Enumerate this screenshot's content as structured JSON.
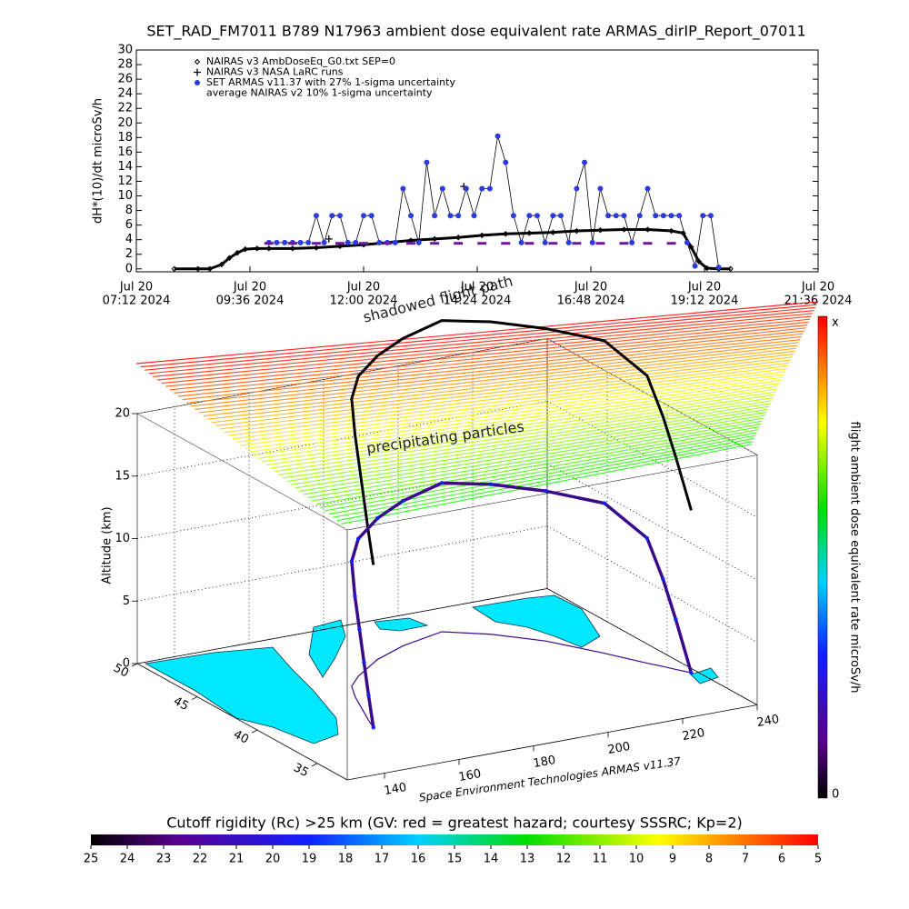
{
  "chart_data": [
    {
      "type": "line",
      "title": "SET_RAD_FM7011  B789 N17963 ambient dose equivalent rate ARMAS_dirIP_Report_07011",
      "y_label": "dH*(10)/dt microSv/h",
      "xlim": [
        "2024-07-20 07:12",
        "2024-07-20 21:36"
      ],
      "xticks": [
        {
          "value": "2024-07-20 07:12",
          "label": [
            "Jul 20",
            "07:12 2024"
          ]
        },
        {
          "value": "2024-07-20 09:36",
          "label": [
            "Jul 20",
            "09:36 2024"
          ]
        },
        {
          "value": "2024-07-20 12:00",
          "label": [
            "Jul 20",
            "12:00 2024"
          ]
        },
        {
          "value": "2024-07-20 14:24",
          "label": [
            "Jul 20",
            "14:24 2024"
          ]
        },
        {
          "value": "2024-07-20 16:48",
          "label": [
            "Jul 20",
            "16:48 2024"
          ]
        },
        {
          "value": "2024-07-20 19:12",
          "label": [
            "Jul 20",
            "19:12 2024"
          ]
        },
        {
          "value": "2024-07-20 21:36",
          "label": [
            "Jul 20",
            "21:36 2024"
          ]
        }
      ],
      "ylim": [
        -0.4,
        30
      ],
      "yticks": [
        0,
        2,
        4,
        6,
        8,
        10,
        12,
        14,
        16,
        18,
        20,
        22,
        24,
        26,
        28,
        30
      ],
      "series": [
        {
          "name": "NAIRAS v3 AmbDoseEq_G0.txt SEP=0",
          "color": "#000000",
          "marker": "diamond",
          "line": true,
          "line_color": "#000000",
          "x": [
            "2024-07-20 08:00",
            "2024-07-20 08:30",
            "2024-07-20 08:45",
            "2024-07-20 09:00",
            "2024-07-20 09:10",
            "2024-07-20 09:20",
            "2024-07-20 09:30",
            "2024-07-20 09:45",
            "2024-07-20 10:00",
            "2024-07-20 10:30",
            "2024-07-20 11:00",
            "2024-07-20 11:30",
            "2024-07-20 12:00",
            "2024-07-20 12:30",
            "2024-07-20 13:00",
            "2024-07-20 13:30",
            "2024-07-20 14:00",
            "2024-07-20 14:30",
            "2024-07-20 15:00",
            "2024-07-20 15:30",
            "2024-07-20 16:00",
            "2024-07-20 16:30",
            "2024-07-20 17:00",
            "2024-07-20 17:30",
            "2024-07-20 18:00",
            "2024-07-20 18:30",
            "2024-07-20 18:45",
            "2024-07-20 18:55",
            "2024-07-20 19:05",
            "2024-07-20 19:15",
            "2024-07-20 19:30",
            "2024-07-20 19:45"
          ],
          "values": [
            0,
            0,
            0,
            0.6,
            1.5,
            2.2,
            2.7,
            2.8,
            2.8,
            2.8,
            2.9,
            3.1,
            3.3,
            3.6,
            3.9,
            4.1,
            4.3,
            4.6,
            4.8,
            4.9,
            5.0,
            5.2,
            5.3,
            5.4,
            5.4,
            5.2,
            4.9,
            3.0,
            1.0,
            0.1,
            0,
            0
          ]
        },
        {
          "name": "NAIRAS v3 NASA LaRC runs",
          "color": "#000000",
          "marker": "plus",
          "line": false,
          "x": [
            "2024-07-20 11:16",
            "2024-07-20 14:07"
          ],
          "values": [
            4.1,
            11.3
          ]
        },
        {
          "name": "SET ARMAS v11.37 with 27% 1-sigma uncertainty",
          "color": "#2b3bdc",
          "marker": "dot",
          "line": true,
          "line_color": "#000000",
          "x": [
            "2024-07-20 10:00",
            "2024-07-20 10:10",
            "2024-07-20 10:20",
            "2024-07-20 10:30",
            "2024-07-20 10:40",
            "2024-07-20 10:50",
            "2024-07-20 11:00",
            "2024-07-20 11:10",
            "2024-07-20 11:20",
            "2024-07-20 11:30",
            "2024-07-20 11:40",
            "2024-07-20 11:50",
            "2024-07-20 12:00",
            "2024-07-20 12:10",
            "2024-07-20 12:20",
            "2024-07-20 12:30",
            "2024-07-20 12:40",
            "2024-07-20 12:50",
            "2024-07-20 13:00",
            "2024-07-20 13:10",
            "2024-07-20 13:20",
            "2024-07-20 13:30",
            "2024-07-20 13:40",
            "2024-07-20 13:50",
            "2024-07-20 14:00",
            "2024-07-20 14:10",
            "2024-07-20 14:20",
            "2024-07-20 14:30",
            "2024-07-20 14:40",
            "2024-07-20 14:50",
            "2024-07-20 15:00",
            "2024-07-20 15:10",
            "2024-07-20 15:20",
            "2024-07-20 15:30",
            "2024-07-20 15:40",
            "2024-07-20 15:50",
            "2024-07-20 16:00",
            "2024-07-20 16:10",
            "2024-07-20 16:20",
            "2024-07-20 16:30",
            "2024-07-20 16:40",
            "2024-07-20 16:50",
            "2024-07-20 17:00",
            "2024-07-20 17:10",
            "2024-07-20 17:20",
            "2024-07-20 17:30",
            "2024-07-20 17:40",
            "2024-07-20 17:50",
            "2024-07-20 18:00",
            "2024-07-20 18:10",
            "2024-07-20 18:20",
            "2024-07-20 18:30",
            "2024-07-20 18:40",
            "2024-07-20 18:50",
            "2024-07-20 19:00",
            "2024-07-20 19:10",
            "2024-07-20 19:20",
            "2024-07-20 19:30"
          ],
          "values": [
            3.6,
            3.6,
            3.6,
            3.6,
            3.6,
            3.6,
            7.3,
            3.6,
            7.3,
            7.3,
            3.6,
            3.6,
            7.3,
            7.3,
            3.6,
            3.6,
            3.6,
            11,
            7.3,
            3.6,
            14.6,
            7.3,
            11,
            7.3,
            7.3,
            11,
            7.3,
            11,
            11,
            18.2,
            14.6,
            7.3,
            3.6,
            7.3,
            7.3,
            3.6,
            7.3,
            7.3,
            3.6,
            11,
            14.6,
            3.6,
            11,
            7.3,
            7.3,
            7.3,
            3.6,
            7.3,
            11,
            7.3,
            7.3,
            7.3,
            7.3,
            3.6,
            0.4,
            7.3,
            7.3,
            0.2
          ]
        },
        {
          "name": "average NAIRAS v2 10% 1-sigma uncertainty",
          "color": "#6a1a9a",
          "marker": "dash",
          "line": false,
          "x": [
            "2024-07-20 10:00",
            "2024-07-20 10:30",
            "2024-07-20 11:00",
            "2024-07-20 11:30",
            "2024-07-20 12:00",
            "2024-07-20 12:30",
            "2024-07-20 13:00",
            "2024-07-20 13:30",
            "2024-07-20 14:00",
            "2024-07-20 14:30",
            "2024-07-20 15:00",
            "2024-07-20 15:30",
            "2024-07-20 16:00",
            "2024-07-20 16:30",
            "2024-07-20 17:00",
            "2024-07-20 17:30",
            "2024-07-20 18:00",
            "2024-07-20 18:30"
          ],
          "values": [
            3.5,
            3.5,
            3.5,
            3.5,
            3.5,
            3.5,
            3.5,
            3.5,
            3.5,
            3.5,
            3.5,
            3.5,
            3.5,
            3.5,
            3.5,
            3.5,
            3.5,
            3.5
          ]
        }
      ]
    },
    {
      "type": "line3d",
      "z_label": "Altitude (km)",
      "annotations": [
        "shadowed flight path",
        "precipitating particles",
        "Space Environment Technologies ARMAS v11.37"
      ],
      "xlim": [
        130,
        240
      ],
      "xticks": [
        140,
        160,
        180,
        200,
        220,
        240
      ],
      "ylim": [
        32.5,
        50
      ],
      "yticks": [
        35,
        40,
        45,
        50
      ],
      "zlim": [
        0,
        20
      ],
      "zticks": [
        0,
        5,
        10,
        15,
        20
      ],
      "color": "#3a0a8a",
      "lon": [
        154.4,
        156,
        158,
        160,
        162,
        165,
        170,
        180,
        190,
        203,
        212,
        220.6,
        228,
        233,
        235,
        236.5,
        238.4
      ],
      "lat": [
        37.9,
        38.8,
        39.8,
        40.8,
        41.8,
        43,
        44,
        45.5,
        46.5,
        47.3,
        46,
        44.1,
        41.5,
        39.5,
        38.8,
        38.2,
        37.5
      ],
      "alt": [
        0,
        2,
        4,
        6,
        8,
        10,
        11,
        11.3,
        11.6,
        11.9,
        12,
        12,
        12,
        10,
        7,
        4,
        0
      ],
      "colorbar": {
        "label": "flight ambient dose equivalent rate microSv/h",
        "labels": [
          "x",
          "0"
        ]
      }
    },
    {
      "type": "colorbar",
      "title": "Cutoff rigidity (Rc) >25 km (GV: red = greatest hazard; courtesy SSSRC; Kp=2)",
      "xlim": [
        25,
        5
      ],
      "xticks": [
        25,
        24,
        23,
        22,
        21,
        20,
        19,
        18,
        17,
        16,
        15,
        14,
        13,
        12,
        11,
        10,
        9,
        8,
        7,
        6,
        5
      ]
    }
  ]
}
